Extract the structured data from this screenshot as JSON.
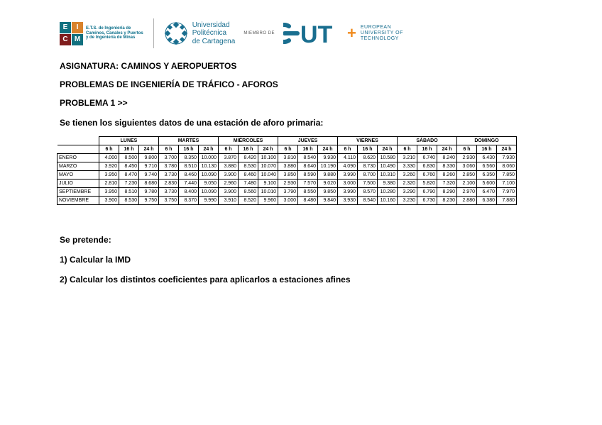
{
  "logos": {
    "eicm": {
      "cells": [
        {
          "letter": "E",
          "bg": "#11707f"
        },
        {
          "letter": "I",
          "bg": "#d9822b"
        },
        {
          "letter": "C",
          "bg": "#7f1d1d"
        },
        {
          "letter": "M",
          "bg": "#11707f"
        }
      ],
      "line1": "E.T.S. de Ingeniería de",
      "line2": "Caminos, Canales y Puertos",
      "line3": "y de Ingeniería de Minas"
    },
    "upct": {
      "line1": "Universidad",
      "line2": "Politécnica",
      "line3": "de Cartagena"
    },
    "miembro": "MIEMBRO DE",
    "eut": {
      "line1": "EUROPEAN",
      "line2": "UNIVERSITY OF",
      "line3": "TECHNOLOGY"
    }
  },
  "heading1": "ASIGNATURA: CAMINOS Y AEROPUERTOS",
  "heading2": "PROBLEMAS DE INGENIERÍA DE TRÁFICO - AFOROS",
  "heading3": "PROBLEMA 1 >>",
  "intro": "Se tienen los siguientes datos de una estación de aforo primaria:",
  "table": {
    "days": [
      "LUNES",
      "MARTES",
      "MIÉRCOLES",
      "JUEVES",
      "VIERNES",
      "SÁBADO",
      "DOMINGO"
    ],
    "sub": [
      "6 h",
      "16 h",
      "24 h"
    ],
    "rows": [
      {
        "label": "ENERO",
        "v": [
          "4.000",
          "8.500",
          "9.800",
          "3.700",
          "8.350",
          "10.000",
          "3.870",
          "8.420",
          "10.100",
          "3.810",
          "8.540",
          "9.930",
          "4.110",
          "8.620",
          "10.580",
          "3.210",
          "6.740",
          "8.240",
          "2.930",
          "6.430",
          "7.930"
        ]
      },
      {
        "label": "MARZO",
        "v": [
          "3.920",
          "8.450",
          "9.710",
          "3.780",
          "8.510",
          "10.130",
          "3.880",
          "8.530",
          "10.070",
          "3.880",
          "8.640",
          "10.190",
          "4.090",
          "8.730",
          "10.490",
          "3.330",
          "6.830",
          "8.330",
          "3.060",
          "6.560",
          "8.060"
        ]
      },
      {
        "label": "MAYO",
        "v": [
          "3.950",
          "8.470",
          "9.740",
          "3.730",
          "8.460",
          "10.090",
          "3.900",
          "8.460",
          "10.040",
          "3.850",
          "8.590",
          "9.880",
          "3.990",
          "8.700",
          "10.310",
          "3.260",
          "6.760",
          "8.260",
          "2.850",
          "6.350",
          "7.850"
        ]
      },
      {
        "label": "JULIO",
        "v": [
          "2.810",
          "7.230",
          "8.680",
          "2.830",
          "7.440",
          "9.050",
          "2.960",
          "7.480",
          "9.100",
          "2.930",
          "7.570",
          "9.020",
          "3.000",
          "7.500",
          "9.380",
          "2.320",
          "5.820",
          "7.320",
          "2.100",
          "5.600",
          "7.100"
        ]
      },
      {
        "label": "SEPTIEMBRE",
        "v": [
          "3.950",
          "8.510",
          "9.780",
          "3.730",
          "8.400",
          "10.090",
          "3.900",
          "8.560",
          "10.010",
          "3.790",
          "8.550",
          "9.850",
          "3.990",
          "8.570",
          "10.280",
          "3.290",
          "6.790",
          "8.290",
          "2.970",
          "6.470",
          "7.970"
        ]
      },
      {
        "label": "NOVIEMBRE",
        "v": [
          "3.900",
          "8.530",
          "9.750",
          "3.750",
          "8.370",
          "9.990",
          "3.910",
          "8.520",
          "9.960",
          "3.000",
          "8.480",
          "9.840",
          "3.930",
          "8.540",
          "10.160",
          "3.230",
          "6.730",
          "8.230",
          "2.880",
          "6.380",
          "7.880"
        ]
      }
    ]
  },
  "bottom": {
    "lead": "Se pretende:",
    "q1": "1) Calcular la IMD",
    "q2": "2) Calcular los distintos coeficientes para aplicarlos a estaciones afines"
  },
  "colors": {
    "brand_blue": "#196e8f",
    "brand_orange": "#f08a1d"
  }
}
